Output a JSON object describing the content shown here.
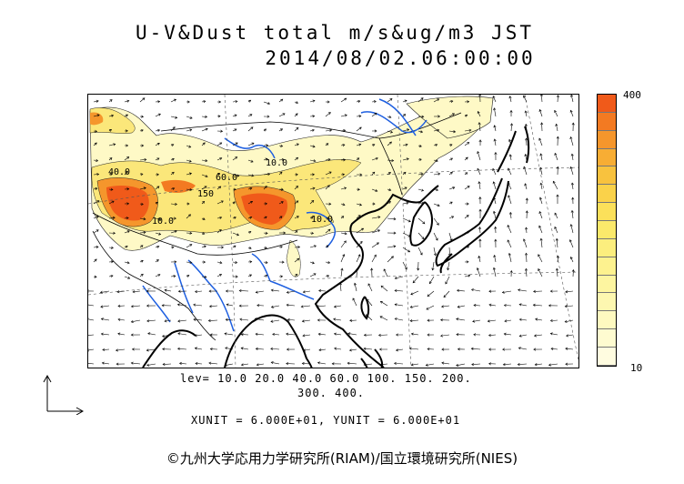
{
  "title": {
    "line1": "U-V&Dust total m/s&ug/m3 JST",
    "line2": "2014/08/02.06:00:00"
  },
  "colorbar": {
    "max_label": "400",
    "min_label": "10",
    "colors": [
      "#f05a1a",
      "#f37a22",
      "#f5962c",
      "#f7ad34",
      "#f8c23e",
      "#fad24a",
      "#fbe05a",
      "#fbe96b",
      "#fcee7e",
      "#fdf28f",
      "#fdf5a0",
      "#fdf7b0",
      "#fef9c0",
      "#fefbd0",
      "#fffce0"
    ]
  },
  "levels": {
    "line1": "lev= 10.0 20.0 40.0 60.0 100. 150. 200.",
    "line2": "300. 400."
  },
  "units": "XUNIT = 6.000E+01, YUNIT = 6.000E+01",
  "contour_labels": [
    "40.0",
    "10.0",
    "60.0",
    "150",
    "10.0",
    "10.0"
  ],
  "copyright": "©九州大学応用力学研究所(RIAM)/国立環境研究所(NIES)",
  "palette": {
    "coast": "#000000",
    "river": "#1e5fe0",
    "grid": "#555555"
  }
}
